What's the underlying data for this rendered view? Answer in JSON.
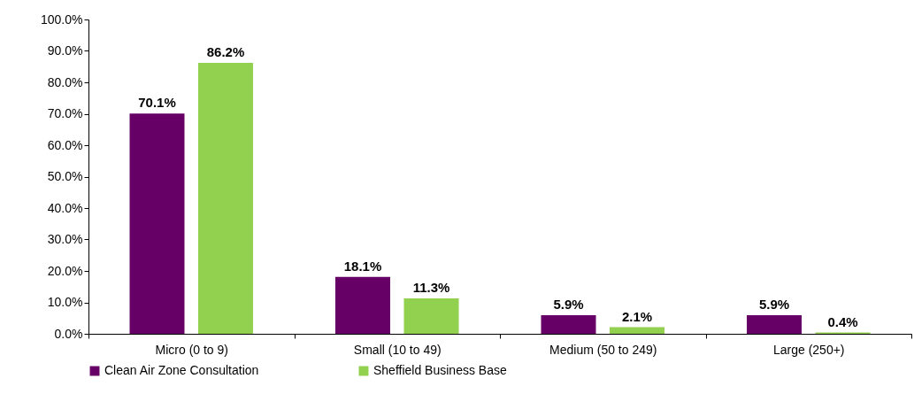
{
  "chart_data": {
    "type": "bar",
    "categories": [
      "Micro (0 to 9)",
      "Small (10 to 49)",
      "Medium (50 to 249)",
      "Large (250+)"
    ],
    "series": [
      {
        "name": "Clean Air Zone Consultation",
        "color": "#660066",
        "values": [
          70.1,
          18.1,
          5.9,
          5.9
        ],
        "value_labels": [
          "70.1%",
          "18.1%",
          "5.9%",
          "5.9%"
        ]
      },
      {
        "name": "Sheffield Business Base",
        "color": "#92d050",
        "values": [
          86.2,
          11.3,
          2.1,
          0.4
        ],
        "value_labels": [
          "86.2%",
          "11.3%",
          "2.1%",
          "0.4%"
        ]
      }
    ],
    "ylim": [
      0,
      100
    ],
    "yticks": [
      {
        "value": 0,
        "label": "0.0%"
      },
      {
        "value": 10,
        "label": "10.0%"
      },
      {
        "value": 20,
        "label": "20.0%"
      },
      {
        "value": 30,
        "label": "30.0%"
      },
      {
        "value": 40,
        "label": "40.0%"
      },
      {
        "value": 50,
        "label": "50.0%"
      },
      {
        "value": 60,
        "label": "60.0%"
      },
      {
        "value": 70,
        "label": "70.0%"
      },
      {
        "value": 80,
        "label": "80.0%"
      },
      {
        "value": 90,
        "label": "90.0%"
      },
      {
        "value": 100,
        "label": "100.0%"
      }
    ],
    "grid": false,
    "legend": "bottom"
  }
}
